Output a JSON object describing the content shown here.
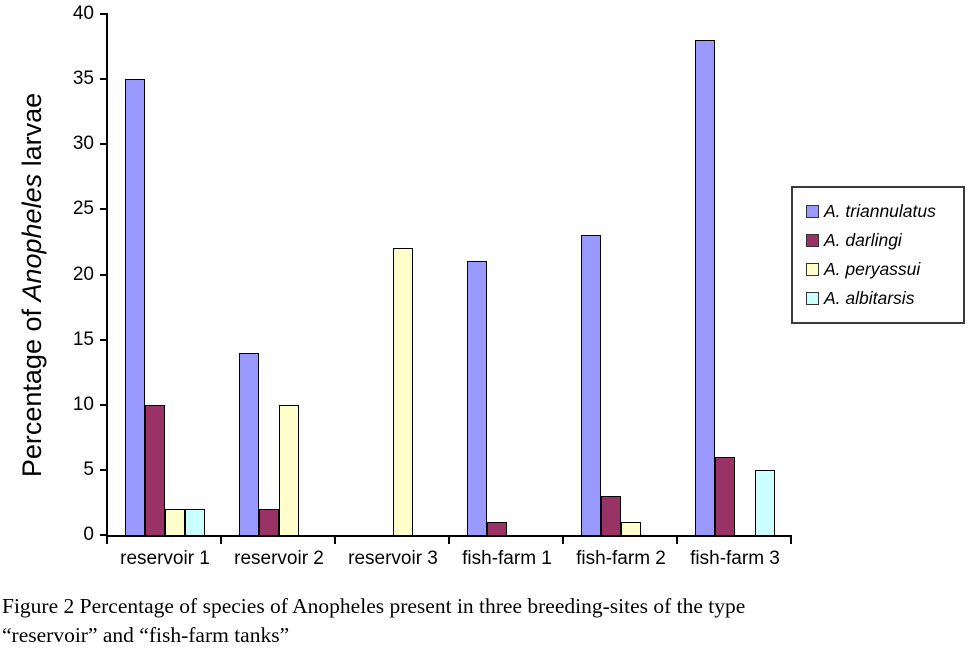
{
  "caption": {
    "line1": "Figure 2 Percentage of species of Anopheles present in three breeding-sites of the type",
    "line2": "“reservoir” and “fish-farm tanks”"
  },
  "chart_data": {
    "type": "bar",
    "title": "",
    "xlabel": "",
    "ylabel": "Percentage of Anopheles larvae",
    "ylabel_parts": [
      "Percentage of ",
      "Anopheles",
      " larvae"
    ],
    "ylim": [
      0,
      40
    ],
    "yticks": [
      0,
      5,
      10,
      15,
      20,
      25,
      30,
      35,
      40
    ],
    "grid": false,
    "legend_position": "right",
    "categories": [
      "reservoir 1",
      "reservoir 2",
      "reservoir 3",
      "fish-farm 1",
      "fish-farm 2",
      "fish-farm 3"
    ],
    "series": [
      {
        "name": "A. triannulatus",
        "color": "#9999FF",
        "values": [
          35,
          14,
          0,
          21,
          23,
          38
        ]
      },
      {
        "name": "A. darlingi",
        "color": "#993366",
        "values": [
          10,
          2,
          0,
          1,
          3,
          6
        ]
      },
      {
        "name": "A. peryassui",
        "color": "#FFFFCC",
        "values": [
          2,
          10,
          22,
          0,
          1,
          0
        ]
      },
      {
        "name": "A. albitarsis",
        "color": "#CCFFFF",
        "values": [
          2,
          0,
          0,
          0,
          0,
          5
        ]
      }
    ],
    "bar_border_color": "#000000",
    "axis_color": "#000000"
  }
}
